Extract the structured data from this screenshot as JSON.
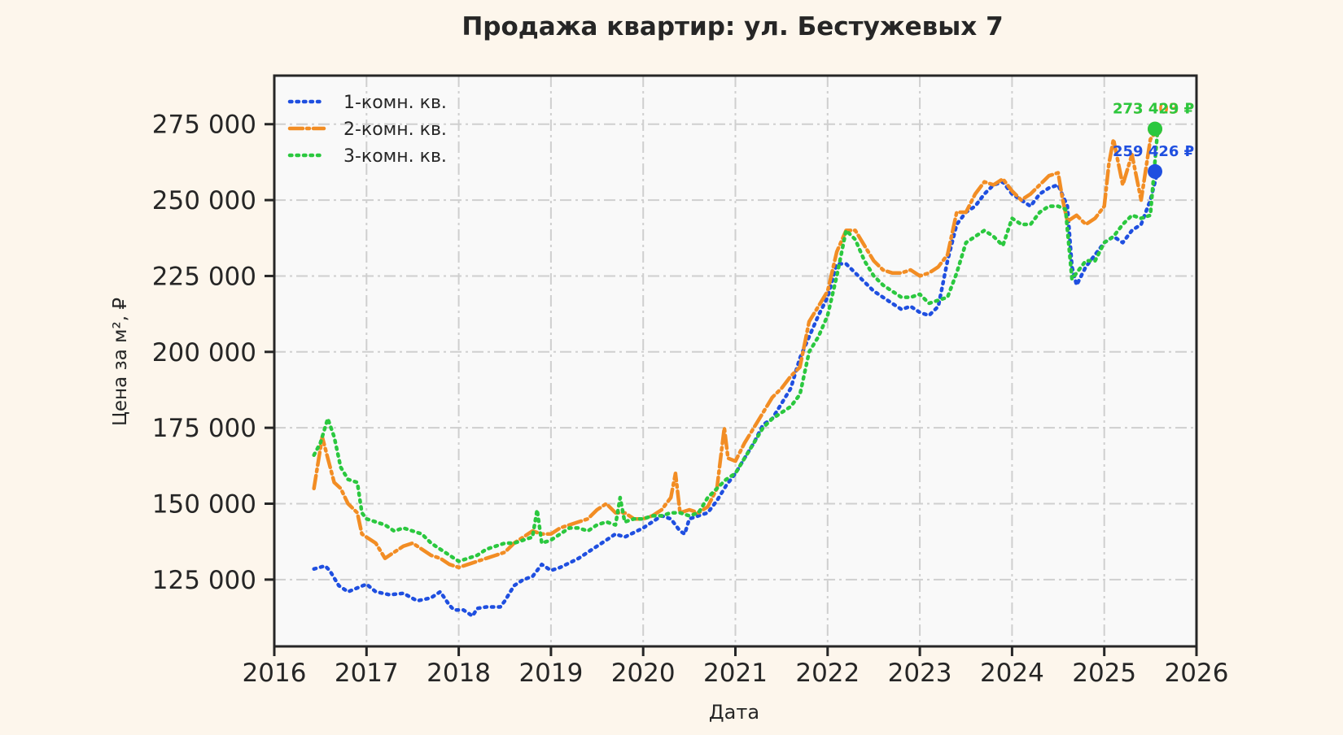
{
  "colors": {
    "background": "#fdf6ec",
    "plot_background": "#f9f9f9",
    "axis": "#262626",
    "grid": "#cfcfcf",
    "series_1": "#1f4fe0",
    "series_2": "#f28d24",
    "series_3": "#2bc83f"
  },
  "chart_data": {
    "type": "line",
    "title": "Продажа квартир: ул. Бестужевых 7",
    "xlabel": "Дата",
    "ylabel": "Цена за м², ₽",
    "xlim": [
      2016,
      2026
    ],
    "ylim": [
      103000,
      291000
    ],
    "x_ticks": [
      2016,
      2017,
      2018,
      2019,
      2020,
      2021,
      2022,
      2023,
      2024,
      2025,
      2026
    ],
    "x_tick_labels": [
      "2016",
      "2017",
      "2018",
      "2019",
      "2020",
      "2021",
      "2022",
      "2023",
      "2024",
      "2025",
      "2026"
    ],
    "y_ticks": [
      125000,
      150000,
      175000,
      200000,
      225000,
      250000,
      275000
    ],
    "y_tick_labels": [
      "125 000",
      "150 000",
      "175 000",
      "200 000",
      "225 000",
      "250 000",
      "275 000"
    ],
    "grid": true,
    "legend_position": "top-left",
    "series": [
      {
        "name": "1-комн. кв.",
        "style": "dotted",
        "color_key": "series_1",
        "x": [
          2016.43,
          2016.55,
          2016.6,
          2016.7,
          2016.8,
          2016.92,
          2017.0,
          2017.1,
          2017.25,
          2017.4,
          2017.55,
          2017.7,
          2017.8,
          2017.9,
          2017.95,
          2018.05,
          2018.1,
          2018.15,
          2018.2,
          2018.3,
          2018.45,
          2018.5,
          2018.6,
          2018.7,
          2018.8,
          2018.9,
          2019.0,
          2019.1,
          2019.2,
          2019.3,
          2019.4,
          2019.5,
          2019.6,
          2019.7,
          2019.8,
          2019.9,
          2020.0,
          2020.1,
          2020.2,
          2020.3,
          2020.4,
          2020.45,
          2020.5,
          2020.6,
          2020.7,
          2020.8,
          2020.9,
          2021.0,
          2021.1,
          2021.2,
          2021.3,
          2021.4,
          2021.5,
          2021.6,
          2021.7,
          2021.8,
          2021.9,
          2022.0,
          2022.1,
          2022.2,
          2022.3,
          2022.4,
          2022.5,
          2022.6,
          2022.7,
          2022.8,
          2022.9,
          2023.0,
          2023.1,
          2023.2,
          2023.3,
          2023.4,
          2023.5,
          2023.6,
          2023.7,
          2023.8,
          2023.9,
          2024.0,
          2024.1,
          2024.2,
          2024.3,
          2024.4,
          2024.5,
          2024.6,
          2024.65,
          2024.7,
          2024.8,
          2024.9,
          2025.0,
          2025.1,
          2025.2,
          2025.3,
          2025.4,
          2025.5,
          2025.58
        ],
        "y": [
          128500,
          129500,
          128000,
          123000,
          121000,
          122500,
          123500,
          121000,
          120000,
          120500,
          118000,
          119000,
          121000,
          116500,
          115000,
          115000,
          114000,
          113000,
          115500,
          116000,
          116000,
          118000,
          123000,
          125000,
          126000,
          130000,
          128000,
          129000,
          130500,
          132000,
          134000,
          136000,
          138000,
          140000,
          139000,
          140500,
          142000,
          144000,
          146000,
          145000,
          141000,
          140000,
          145000,
          146000,
          147000,
          151000,
          156000,
          160000,
          165000,
          170000,
          176000,
          178000,
          183000,
          188000,
          198000,
          205000,
          212000,
          218000,
          229000,
          229000,
          226000,
          223000,
          220000,
          218000,
          216000,
          214000,
          215000,
          213000,
          212000,
          215000,
          230000,
          242000,
          246000,
          248000,
          252000,
          255000,
          256000,
          252000,
          250000,
          248000,
          252000,
          254000,
          255000,
          248000,
          228000,
          222000,
          228000,
          232000,
          236000,
          238000,
          236000,
          240000,
          242000,
          250000,
          259426
        ]
      },
      {
        "name": "2-комн. кв.",
        "style": "dashdot",
        "color_key": "series_2",
        "x": [
          2016.43,
          2016.52,
          2016.58,
          2016.65,
          2016.72,
          2016.8,
          2016.9,
          2016.95,
          2017.0,
          2017.1,
          2017.2,
          2017.3,
          2017.4,
          2017.5,
          2017.6,
          2017.7,
          2017.8,
          2017.9,
          2018.0,
          2018.1,
          2018.2,
          2018.3,
          2018.4,
          2018.5,
          2018.6,
          2018.7,
          2018.8,
          2018.9,
          2019.0,
          2019.1,
          2019.2,
          2019.3,
          2019.4,
          2019.5,
          2019.6,
          2019.7,
          2019.8,
          2019.9,
          2020.0,
          2020.1,
          2020.2,
          2020.3,
          2020.35,
          2020.4,
          2020.5,
          2020.6,
          2020.7,
          2020.8,
          2020.88,
          2020.92,
          2021.0,
          2021.1,
          2021.2,
          2021.3,
          2021.4,
          2021.5,
          2021.6,
          2021.7,
          2021.8,
          2021.9,
          2022.0,
          2022.1,
          2022.2,
          2022.3,
          2022.4,
          2022.5,
          2022.6,
          2022.7,
          2022.8,
          2022.9,
          2023.0,
          2023.1,
          2023.2,
          2023.3,
          2023.4,
          2023.5,
          2023.6,
          2023.7,
          2023.8,
          2023.9,
          2024.0,
          2024.1,
          2024.2,
          2024.3,
          2024.4,
          2024.5,
          2024.55,
          2024.6,
          2024.7,
          2024.8,
          2024.9,
          2025.0,
          2025.05,
          2025.1,
          2025.2,
          2025.3,
          2025.4,
          2025.5,
          2025.58
        ],
        "y": [
          155000,
          172000,
          165000,
          157000,
          155000,
          150000,
          147000,
          140000,
          139000,
          137000,
          132000,
          134000,
          136000,
          137000,
          135000,
          133000,
          132000,
          130000,
          129000,
          130000,
          131000,
          132000,
          133000,
          134000,
          137000,
          139000,
          141000,
          140000,
          140000,
          142000,
          143000,
          144000,
          145000,
          148000,
          150000,
          147000,
          147000,
          145000,
          145000,
          146000,
          148000,
          152000,
          160000,
          147000,
          148000,
          147000,
          149000,
          155000,
          175000,
          165000,
          164000,
          170000,
          175000,
          180000,
          185000,
          188000,
          192000,
          195000,
          210000,
          215000,
          220000,
          233000,
          240000,
          240000,
          235000,
          230000,
          227000,
          226000,
          226000,
          227000,
          225000,
          226000,
          228000,
          232000,
          246000,
          246000,
          252000,
          256000,
          255000,
          257000,
          253000,
          250000,
          252000,
          255000,
          258000,
          259000,
          250000,
          243000,
          245000,
          242000,
          244000,
          248000,
          262000,
          270000,
          255000,
          265000,
          250000,
          270000,
          273403
        ]
      },
      {
        "name": "3-комн. кв.",
        "style": "dotted",
        "color_key": "series_3",
        "x": [
          2016.43,
          2016.5,
          2016.58,
          2016.65,
          2016.72,
          2016.8,
          2016.9,
          2016.95,
          2017.0,
          2017.1,
          2017.2,
          2017.3,
          2017.4,
          2017.5,
          2017.6,
          2017.7,
          2017.8,
          2017.9,
          2018.0,
          2018.1,
          2018.2,
          2018.3,
          2018.4,
          2018.5,
          2018.6,
          2018.7,
          2018.8,
          2018.85,
          2018.9,
          2019.0,
          2019.1,
          2019.2,
          2019.3,
          2019.4,
          2019.5,
          2019.6,
          2019.7,
          2019.75,
          2019.8,
          2019.9,
          2020.0,
          2020.1,
          2020.2,
          2020.3,
          2020.4,
          2020.5,
          2020.6,
          2020.7,
          2020.8,
          2020.9,
          2021.0,
          2021.1,
          2021.2,
          2021.3,
          2021.4,
          2021.5,
          2021.6,
          2021.7,
          2021.8,
          2021.9,
          2022.0,
          2022.1,
          2022.2,
          2022.3,
          2022.4,
          2022.5,
          2022.6,
          2022.7,
          2022.8,
          2022.9,
          2023.0,
          2023.1,
          2023.2,
          2023.3,
          2023.4,
          2023.5,
          2023.6,
          2023.7,
          2023.8,
          2023.9,
          2024.0,
          2024.1,
          2024.2,
          2024.3,
          2024.4,
          2024.5,
          2024.58,
          2024.65,
          2024.7,
          2024.8,
          2024.9,
          2025.0,
          2025.1,
          2025.2,
          2025.3,
          2025.4,
          2025.5,
          2025.58
        ],
        "y": [
          166000,
          170000,
          178000,
          172000,
          162000,
          158000,
          157000,
          147000,
          145000,
          144000,
          143000,
          141000,
          142000,
          141000,
          140000,
          137000,
          135000,
          133000,
          131000,
          132000,
          133000,
          135000,
          136000,
          137000,
          137000,
          138000,
          139000,
          148000,
          137000,
          138000,
          140000,
          142000,
          142000,
          141000,
          143000,
          144000,
          143000,
          152000,
          144000,
          145000,
          145000,
          146000,
          146000,
          147000,
          147000,
          146000,
          147000,
          152000,
          155000,
          158000,
          160000,
          165000,
          170000,
          175000,
          178000,
          180000,
          182000,
          186000,
          200000,
          205000,
          212000,
          225000,
          240000,
          237000,
          230000,
          225000,
          222000,
          220000,
          218000,
          218000,
          219000,
          216000,
          217000,
          218000,
          226000,
          236000,
          238000,
          240000,
          238000,
          235000,
          244000,
          242000,
          242000,
          246000,
          248000,
          248000,
          247000,
          224000,
          226000,
          230000,
          230000,
          236000,
          238000,
          242000,
          245000,
          244000,
          245000,
          273429
        ]
      }
    ],
    "end_markers": [
      {
        "series": "1-комн. кв.",
        "x": 2025.55,
        "y": 259426,
        "label": "259 426 ₽",
        "color_key": "series_1"
      },
      {
        "series": "2-комн. кв.",
        "x": 2025.55,
        "y": 273403,
        "label": "273 403 ₽",
        "color_key": "series_2"
      },
      {
        "series": "3-комн. кв.",
        "x": 2025.55,
        "y": 273429,
        "label": "273 429 ₽",
        "color_key": "series_3"
      }
    ]
  }
}
